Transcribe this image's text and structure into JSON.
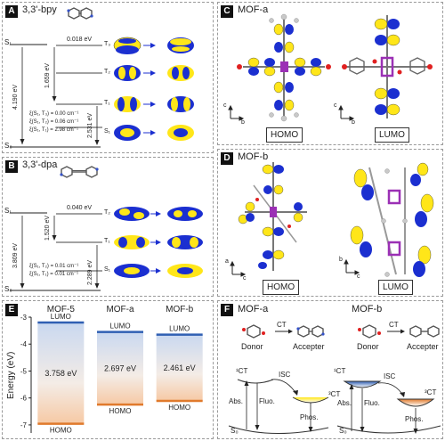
{
  "panelA": {
    "letter": "A",
    "title": "3,3'-bpy",
    "s1": "S₁",
    "s0": "S₀",
    "t3": "T₃",
    "t2": "T₂",
    "t1": "T₁",
    "s1b": "S₁",
    "gap_s1_t3": "0.018 eV",
    "gap_t3_t1": "1.659 eV",
    "gap_s1_s0": "4.190 eV",
    "gap_t1_s0": "2.531 eV",
    "xi1": "ξ(S₁, T₃) = 0.00 cm⁻¹",
    "xi2": "ξ(S₁, T₂) = 0.06 cm⁻¹",
    "xi3": "ξ(S₁, T₁) = 2.98 cm⁻¹"
  },
  "panelB": {
    "letter": "B",
    "title": "3,3'-dpa",
    "s1": "S₁",
    "s0": "S₀",
    "t2": "T₂",
    "t1": "T₁",
    "s1b": "S₁",
    "gap_s1_t2": "0.040 eV",
    "gap_t2_t1": "1.520 eV",
    "gap_s1_s0": "3.809 eV",
    "gap_t1_s0": "2.289 eV",
    "xi1": "ξ(S₁, T₂) = 0.01 cm⁻¹",
    "xi2": "ξ(S₁, T₁) = 0.01 cm⁻¹"
  },
  "panelC": {
    "letter": "C",
    "title": "MOF-a",
    "homo": "HOMO",
    "lumo": "LUMO",
    "axis_c": "c",
    "axis_b": "b"
  },
  "panelD": {
    "letter": "D",
    "title": "MOF-b",
    "homo": "HOMO",
    "lumo": "LUMO",
    "axis_a": "a",
    "axis_c": "c",
    "axis_b": "b",
    "axis_c2": "c"
  },
  "panelE": {
    "letter": "E",
    "ylabel": "Energy (eV)",
    "lumo_label": "LUMO",
    "homo_label": "HOMO",
    "chart_data": {
      "type": "bar",
      "categories": [
        "MOF-5",
        "MOF-a",
        "MOF-b"
      ],
      "lumo": [
        -3.2,
        -3.55,
        -3.65
      ],
      "homo": [
        -6.958,
        -6.247,
        -6.111
      ],
      "gap_labels": [
        "3.758 eV",
        "2.697 eV",
        "2.461 eV"
      ],
      "ylim": [
        -7.3,
        -3.0
      ],
      "yticks": [
        "-3",
        "-4",
        "-5",
        "-6",
        "-7"
      ],
      "ytick_values": [
        -3,
        -4,
        -5,
        -6,
        -7
      ]
    }
  },
  "panelF": {
    "letter": "F",
    "left": {
      "title": "MOF-a",
      "donor": "Donor",
      "ct": "CT",
      "accepter": "Accepter",
      "ct1": "¹CT",
      "ct3": "³CT",
      "isc": "ISC",
      "abs": "Abs.",
      "fluo": "Fluo.",
      "phos": "Phos.",
      "s0": "S₀"
    },
    "right": {
      "title": "MOF-b",
      "donor": "Donor",
      "ct": "CT",
      "accepter": "Accepter",
      "ct1": "¹CT",
      "ct3": "³CT",
      "isc": "ISC",
      "abs": "Abs.",
      "fluo": "Fluo.",
      "phos": "Phos.",
      "s0": "S₀"
    }
  },
  "colors": {
    "lumo": "#2f5fb3",
    "homo": "#e07a2c",
    "orbital_yellow": "#ffe619",
    "orbital_blue": "#1b2fd0"
  }
}
